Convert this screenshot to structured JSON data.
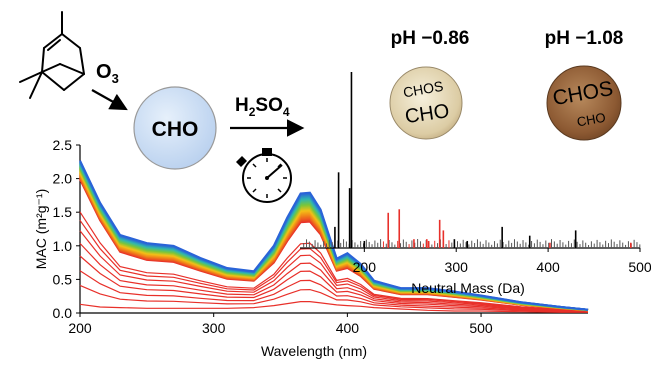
{
  "molecule": {
    "name": "alpha-pinene structure"
  },
  "reagents": {
    "ozone": {
      "base": "O",
      "sub": "3"
    },
    "acid": {
      "p1": "H",
      "s1": "2",
      "p2": "SO",
      "s2": "4"
    }
  },
  "particles": {
    "cho": {
      "label": "CHO",
      "color": "#cfe0f5"
    },
    "ph086": {
      "title": "pH −0.86",
      "top": "CHOS",
      "bottom": "CHO",
      "color": "#d9c9a0"
    },
    "ph108": {
      "title": "pH −1.08",
      "top": "CHOS",
      "bottom": "CHO",
      "color": "#8a5a35"
    }
  },
  "chart_data": [
    {
      "type": "line",
      "name_hint": "absorption spectra",
      "xlabel": "Wavelength (nm)",
      "ylabel": "MAC (m²g⁻¹)",
      "xlim": [
        200,
        580
      ],
      "ylim": [
        0,
        2.5
      ],
      "xticks": [
        200,
        300,
        400,
        500
      ],
      "yticks": [
        0.0,
        0.5,
        1.0,
        1.5,
        2.0,
        2.5
      ],
      "colors": [
        "#e8302a",
        "#f07a1a",
        "#f4c017",
        "#7ac63a",
        "#2fb7b0",
        "#2a63d8"
      ],
      "wavelength": [
        200,
        215,
        230,
        250,
        270,
        290,
        310,
        330,
        345,
        355,
        365,
        372,
        380,
        392,
        400,
        410,
        420,
        440,
        460,
        480,
        500,
        530,
        560,
        580
      ],
      "series": [
        {
          "values": [
            0.13,
            0.09,
            0.08,
            0.07,
            0.07,
            0.07,
            0.07,
            0.08,
            0.11,
            0.14,
            0.17,
            0.17,
            0.15,
            0.12,
            0.11,
            0.1,
            0.08,
            0.06,
            0.04,
            0.03,
            0.03,
            0.02,
            0.01,
            0.01
          ]
        },
        {
          "values": [
            1.99,
            1.38,
            0.91,
            0.79,
            0.76,
            0.63,
            0.51,
            0.48,
            0.75,
            1.07,
            1.35,
            1.36,
            1.17,
            0.63,
            0.67,
            0.55,
            0.36,
            0.28,
            0.28,
            0.24,
            0.2,
            0.12,
            0.07,
            0.04
          ]
        },
        {
          "values": [
            2.05,
            1.44,
            0.96,
            0.84,
            0.81,
            0.67,
            0.55,
            0.51,
            0.81,
            1.15,
            1.44,
            1.45,
            1.25,
            0.66,
            0.72,
            0.59,
            0.39,
            0.3,
            0.3,
            0.26,
            0.21,
            0.13,
            0.07,
            0.04
          ]
        },
        {
          "values": [
            2.11,
            1.49,
            1.01,
            0.9,
            0.86,
            0.71,
            0.58,
            0.54,
            0.86,
            1.22,
            1.53,
            1.54,
            1.33,
            0.7,
            0.76,
            0.62,
            0.41,
            0.32,
            0.32,
            0.28,
            0.23,
            0.14,
            0.08,
            0.05
          ]
        },
        {
          "values": [
            2.17,
            1.54,
            1.06,
            0.95,
            0.91,
            0.75,
            0.61,
            0.57,
            0.91,
            1.29,
            1.62,
            1.63,
            1.4,
            0.74,
            0.81,
            0.66,
            0.43,
            0.34,
            0.34,
            0.29,
            0.24,
            0.14,
            0.08,
            0.05
          ]
        },
        {
          "values": [
            2.22,
            1.59,
            1.11,
            1.0,
            0.96,
            0.79,
            0.65,
            0.6,
            0.96,
            1.36,
            1.71,
            1.72,
            1.48,
            0.78,
            0.85,
            0.7,
            0.46,
            0.36,
            0.36,
            0.31,
            0.25,
            0.15,
            0.09,
            0.05
          ]
        },
        {
          "values": [
            2.27,
            1.64,
            1.16,
            1.04,
            1.0,
            0.82,
            0.67,
            0.62,
            1.0,
            1.42,
            1.78,
            1.79,
            1.54,
            0.81,
            0.89,
            0.73,
            0.48,
            0.37,
            0.37,
            0.32,
            0.26,
            0.16,
            0.09,
            0.05
          ]
        }
      ]
    },
    {
      "type": "bar",
      "name_hint": "mass spectrum",
      "xlabel": "Neutral Mass (Da)",
      "xlim": [
        130,
        500
      ],
      "xticks": [
        200,
        300,
        400,
        500
      ],
      "ylim": [
        0,
        1
      ],
      "colors": {
        "CHO": "#000000",
        "CHOS": "#e8302a"
      },
      "peaks": [
        {
          "mass": 168,
          "intensity": 0.12,
          "group": "CHO"
        },
        {
          "mass": 172,
          "intensity": 0.43,
          "group": "CHO"
        },
        {
          "mass": 186,
          "intensity": 1.0,
          "group": "CHO"
        },
        {
          "mass": 184,
          "intensity": 0.34,
          "group": "CHO"
        },
        {
          "mass": 200,
          "intensity": 0.04,
          "group": "CHO"
        },
        {
          "mass": 226,
          "intensity": 0.2,
          "group": "CHOS"
        },
        {
          "mass": 238,
          "intensity": 0.22,
          "group": "CHOS"
        },
        {
          "mass": 254,
          "intensity": 0.05,
          "group": "CHOS"
        },
        {
          "mass": 268,
          "intensity": 0.05,
          "group": "CHOS"
        },
        {
          "mass": 270,
          "intensity": 0.04,
          "group": "CHOS"
        },
        {
          "mass": 282,
          "intensity": 0.16,
          "group": "CHOS"
        },
        {
          "mass": 286,
          "intensity": 0.1,
          "group": "CHOS"
        },
        {
          "mass": 298,
          "intensity": 0.05,
          "group": "CHO"
        },
        {
          "mass": 312,
          "intensity": 0.04,
          "group": "CHO"
        },
        {
          "mass": 350,
          "intensity": 0.12,
          "group": "CHO"
        },
        {
          "mass": 380,
          "intensity": 0.07,
          "group": "CHO"
        },
        {
          "mass": 402,
          "intensity": 0.03,
          "group": "CHOS"
        },
        {
          "mass": 430,
          "intensity": 0.1,
          "group": "CHO"
        },
        {
          "mass": 490,
          "intensity": 0.03,
          "group": "CHOS"
        }
      ]
    }
  ]
}
